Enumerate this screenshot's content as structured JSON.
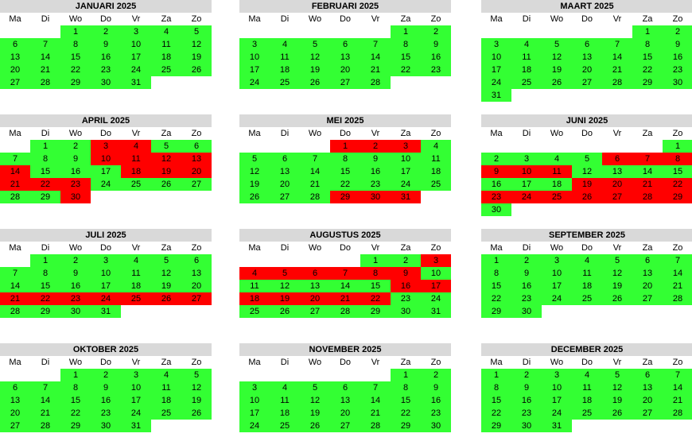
{
  "weekdays": [
    "Ma",
    "Di",
    "Wo",
    "Do",
    "Vr",
    "Za",
    "Zo"
  ],
  "colors": {
    "available": "#33ff33",
    "booked": "#ff0000",
    "header": "#d9d9d9"
  },
  "months": [
    {
      "title": "JANUARI 2025",
      "first_weekday": 3,
      "days": 31,
      "booked": []
    },
    {
      "title": "FEBRUARI 2025",
      "first_weekday": 6,
      "days": 28,
      "booked": []
    },
    {
      "title": "MAART 2025",
      "first_weekday": 6,
      "days": 31,
      "booked": []
    },
    {
      "title": "APRIL 2025",
      "first_weekday": 2,
      "days": 30,
      "booked": [
        3,
        4,
        10,
        11,
        12,
        13,
        14,
        18,
        19,
        20,
        21,
        22,
        23,
        30
      ]
    },
    {
      "title": "MEI 2025",
      "first_weekday": 4,
      "days": 31,
      "booked": [
        1,
        2,
        3,
        29,
        30,
        31
      ]
    },
    {
      "title": "JUNI 2025",
      "first_weekday": 7,
      "days": 30,
      "booked": [
        6,
        7,
        8,
        9,
        10,
        11,
        19,
        20,
        21,
        22,
        23,
        24,
        25,
        26,
        27,
        28,
        29
      ]
    },
    {
      "title": "JULI 2025",
      "first_weekday": 2,
      "days": 31,
      "booked": [
        21,
        22,
        23,
        24,
        25,
        26,
        27
      ]
    },
    {
      "title": "AUGUSTUS 2025",
      "first_weekday": 5,
      "days": 31,
      "booked": [
        3,
        4,
        5,
        6,
        7,
        8,
        9,
        16,
        17,
        18,
        19,
        20,
        21,
        22
      ]
    },
    {
      "title": "SEPTEMBER 2025",
      "first_weekday": 1,
      "days": 30,
      "booked": []
    },
    {
      "title": "OKTOBER 2025",
      "first_weekday": 3,
      "days": 31,
      "booked": []
    },
    {
      "title": "NOVEMBER 2025",
      "first_weekday": 6,
      "days": 30,
      "booked": []
    },
    {
      "title": "DECEMBER 2025",
      "first_weekday": 1,
      "days": 31,
      "booked": []
    }
  ]
}
